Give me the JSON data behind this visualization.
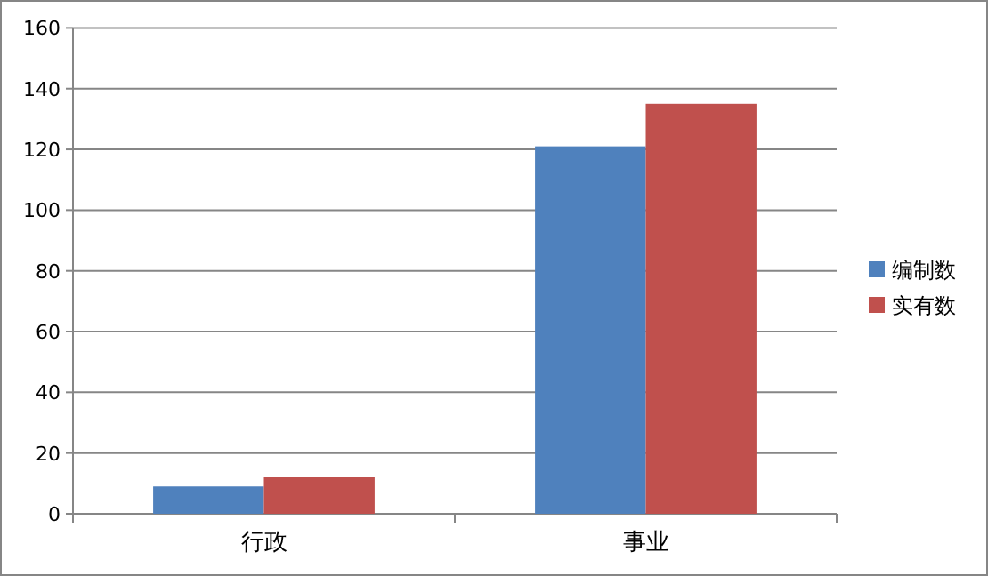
{
  "chart_data": {
    "type": "bar",
    "categories": [
      "行政",
      "事业"
    ],
    "series": [
      {
        "name": "编制数",
        "color": "#4f81bd",
        "values": [
          9,
          121
        ]
      },
      {
        "name": "实有数",
        "color": "#c0504d",
        "values": [
          12,
          135
        ]
      }
    ],
    "ylim": [
      0,
      160
    ],
    "yticks": [
      0,
      20,
      40,
      60,
      80,
      100,
      120,
      140,
      160
    ],
    "grid": "y",
    "legend": "right"
  }
}
